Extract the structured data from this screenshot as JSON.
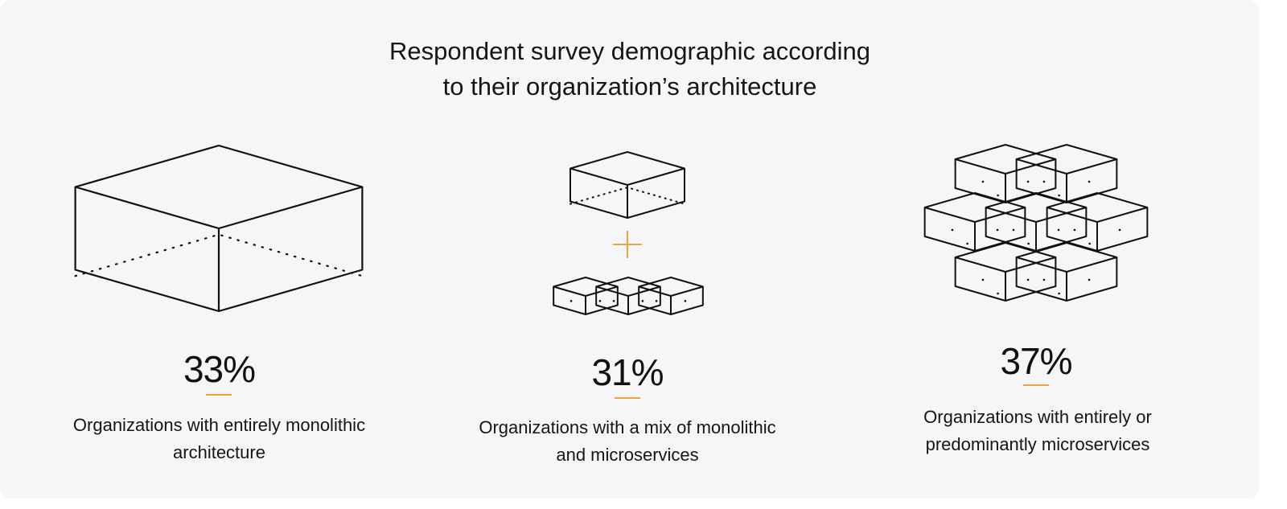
{
  "title": {
    "line1": "Respondent survey demographic according",
    "line2": "to their organization’s architecture"
  },
  "accent_color": "#f0a040",
  "columns": [
    {
      "icon": "single-large-cube-icon",
      "percent": "33%",
      "desc_line1": "Organizations with entirely monolithic",
      "desc_line2": "architecture"
    },
    {
      "icon": "cube-plus-three-small-cubes-icon",
      "percent": "31%",
      "desc_line1": "Organizations with a mix of monolithic",
      "desc_line2": "and microservices"
    },
    {
      "icon": "seven-cube-cluster-icon",
      "percent": "37%",
      "desc_line1": "Organizations with entirely or",
      "desc_line2": "predominantly microservices"
    }
  ]
}
